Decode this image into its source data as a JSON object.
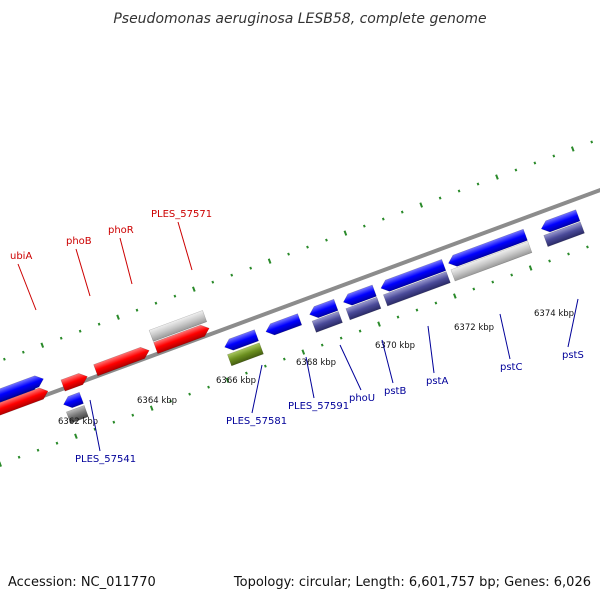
{
  "title": "Pseudomonas aeruginosa LESB58, complete genome",
  "footer": {
    "accession": "Accession: NC_011770",
    "summary": "Topology: circular; Length: 6,601,757 bp; Genes: 6,026"
  },
  "colors": {
    "forward_label": "#cc0000",
    "reverse_label": "#000099",
    "red": "#ff0000",
    "blue": "#0000ff",
    "gray": "#c8c8c8",
    "darkgray": "#777777",
    "purple": "#4a4a99",
    "green": "#6b8f1f",
    "backbone": "#8c8c8c",
    "ticks": "#2a8a2a"
  },
  "ruler": [
    {
      "id": "6362",
      "label": "6362 kbp"
    },
    {
      "id": "6364",
      "label": "6364 kbp"
    },
    {
      "id": "6366",
      "label": "6366 kbp"
    },
    {
      "id": "6368",
      "label": "6368 kbp"
    },
    {
      "id": "6370",
      "label": "6370 kbp"
    },
    {
      "id": "6372",
      "label": "6372 kbp"
    },
    {
      "id": "6374",
      "label": "6374 kbp"
    }
  ],
  "gene_labels": {
    "ubiA": "ubiA",
    "phoB": "phoB",
    "phoR": "phoR",
    "PLES_57571": "PLES_57571",
    "PLES_57541": "PLES_57541",
    "PLES_57581": "PLES_57581",
    "PLES_57591": "PLES_57591",
    "phoU": "phoU",
    "pstB": "pstB",
    "pstA": "pstA",
    "pstC": "pstC",
    "pstS": "pstS"
  }
}
